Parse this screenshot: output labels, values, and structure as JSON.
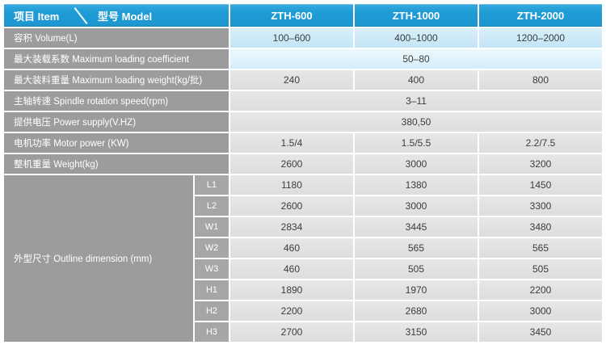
{
  "chart_data": {
    "type": "table",
    "corner": {
      "item": "项目 Item",
      "model": "型号 Model"
    },
    "columns": [
      "ZTH-600",
      "ZTH-1000",
      "ZTH-2000"
    ],
    "rows": [
      {
        "label": "容积 Volume(L)",
        "values": [
          "100–600",
          "400–1000",
          "1200–2000"
        ],
        "span": false
      },
      {
        "label": "最大装载系数 Maximum loading coefficient",
        "values": [
          "50–80"
        ],
        "span": true
      },
      {
        "label": "最大装料重量 Maximum loading weight(kg/批)",
        "values": [
          "240",
          "400",
          "800"
        ],
        "span": false
      },
      {
        "label": "主轴转速 Spindle rotation speed(rpm)",
        "values": [
          "3–11"
        ],
        "span": true
      },
      {
        "label": "提供电压 Power supply(V.HZ)",
        "values": [
          "380,50"
        ],
        "span": true
      },
      {
        "label": "电机功率 Motor power (KW)",
        "values": [
          "1.5/4",
          "1.5/5.5",
          "2.2/7.5"
        ],
        "span": false
      },
      {
        "label": "整机重量 Weight(kg)",
        "values": [
          "2600",
          "3000",
          "3200"
        ],
        "span": false
      }
    ],
    "dimension_group": {
      "label": "外型尺寸 Outline dimension (mm)",
      "rows": [
        {
          "code": "L1",
          "values": [
            "1180",
            "1380",
            "1450"
          ]
        },
        {
          "code": "L2",
          "values": [
            "2600",
            "3000",
            "3300"
          ]
        },
        {
          "code": "W1",
          "values": [
            "2834",
            "3445",
            "3480"
          ]
        },
        {
          "code": "W2",
          "values": [
            "460",
            "565",
            "565"
          ]
        },
        {
          "code": "W3",
          "values": [
            "460",
            "505",
            "505"
          ]
        },
        {
          "code": "H1",
          "values": [
            "1890",
            "1970",
            "2200"
          ]
        },
        {
          "code": "H2",
          "values": [
            "2200",
            "2680",
            "3000"
          ]
        },
        {
          "code": "H3",
          "values": [
            "2700",
            "3150",
            "3450"
          ]
        }
      ]
    }
  },
  "colors": {
    "page_background": "#ffffff",
    "header_blue": "#1f9cd6",
    "row_label_grey": "#9c9c9c",
    "dimension_code_grey": "#a6a6a6",
    "data_cell_grey": "#e2e2e0",
    "volume_row_blue": "#c9e8f7",
    "coefficient_row_blue": "#e0f3fc"
  }
}
